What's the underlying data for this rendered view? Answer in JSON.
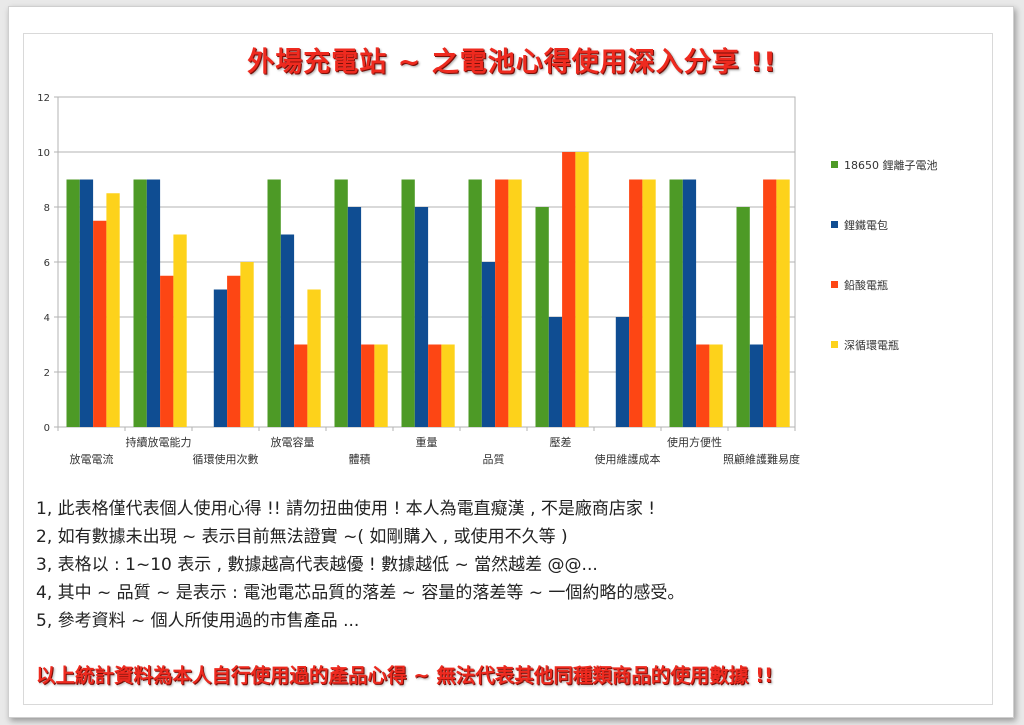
{
  "title": "外場充電站 ~ 之電池心得使用深入分享 !!",
  "chart_data": {
    "type": "bar",
    "categories": [
      "放電電流",
      "持續放電能力",
      "循環使用次數",
      "放電容量",
      "體積",
      "重量",
      "品質",
      "壓差",
      "使用維護成本",
      "使用方便性",
      "照顧維護難易度"
    ],
    "series": [
      {
        "name": "18650 鋰離子電池",
        "color": "#4d9a26",
        "values": [
          9,
          9,
          0,
          9,
          9,
          9,
          9,
          8,
          0,
          9,
          8
        ]
      },
      {
        "name": "鋰鐵電包",
        "color": "#0f4d92",
        "values": [
          9,
          9,
          5,
          7,
          8,
          8,
          6,
          4,
          4,
          9,
          3
        ]
      },
      {
        "name": "鉛酸電瓶",
        "color": "#fd4614",
        "values": [
          7.5,
          5.5,
          5.5,
          3,
          3,
          3,
          9,
          10,
          9,
          3,
          9
        ]
      },
      {
        "name": "深循環電瓶",
        "color": "#fdd21b",
        "values": [
          8.5,
          7,
          6,
          5,
          3,
          3,
          9,
          10,
          9,
          3,
          9
        ]
      }
    ],
    "ylim": [
      0,
      12
    ],
    "yticks": [
      "0",
      "2",
      "4",
      "6",
      "8",
      "10",
      "12"
    ],
    "grid": true,
    "legend": "right"
  },
  "notes": [
    "1, 此表格僅代表個人使用心得 !! 請勿扭曲使用 ! 本人為電直癡漢 , 不是廠商店家 !",
    "2, 如有數據未出現 ~ 表示目前無法證實 ~( 如剛購入 , 或使用不久等 )",
    "3, 表格以 : 1~10 表示 , 數據越高代表越優 ! 數據越低 ~ 當然越差 @@...",
    "4, 其中 ~ 品質 ~ 是表示 : 電池電芯品質的落差 ~ 容量的落差等 ~ 一個約略的感受。",
    "5, 參考資料 ~ 個人所使用過的市售產品 ..."
  ],
  "footer": "以上統計資料為本人自行使用過的產品心得 ~ 無法代表其他同種類商品的使用數據 !!"
}
